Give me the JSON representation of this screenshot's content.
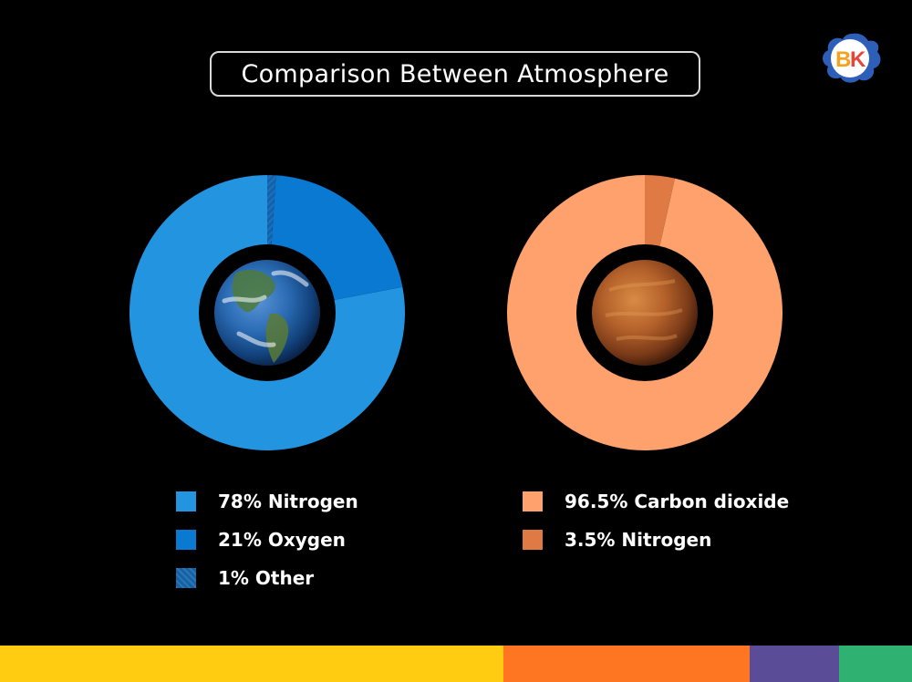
{
  "title": "Comparison Between Atmosphere",
  "logo": {
    "text_b": "B",
    "text_k": "K",
    "colors": {
      "splash": "#2e5fb8",
      "b": "#f6a21c",
      "k": "#e8443a"
    }
  },
  "chart_data": [
    {
      "type": "pie",
      "variant": "donut",
      "center_image": "earth",
      "categories": [
        "Nitrogen",
        "Oxygen",
        "Other"
      ],
      "values": [
        78,
        21,
        1
      ],
      "colors": [
        "#2294e0",
        "#0a79d2",
        "#1362a8"
      ],
      "legend": [
        "78% Nitrogen",
        "21% Oxygen",
        "1% Other"
      ]
    },
    {
      "type": "pie",
      "variant": "donut",
      "center_image": "venus",
      "categories": [
        "Carbon dioxide",
        "Nitrogen"
      ],
      "values": [
        96.5,
        3.5
      ],
      "colors": [
        "#ffa16c",
        "#e07a44"
      ],
      "legend": [
        "96.5% Carbon dioxide",
        "3.5% Nitrogen"
      ]
    }
  ],
  "bottom_bar": {
    "colors": [
      "#ffcc12",
      "#ff7622",
      "#5b4c98",
      "#2fb171"
    ],
    "widths_pct": [
      55.2,
      27,
      9.8,
      8
    ]
  }
}
